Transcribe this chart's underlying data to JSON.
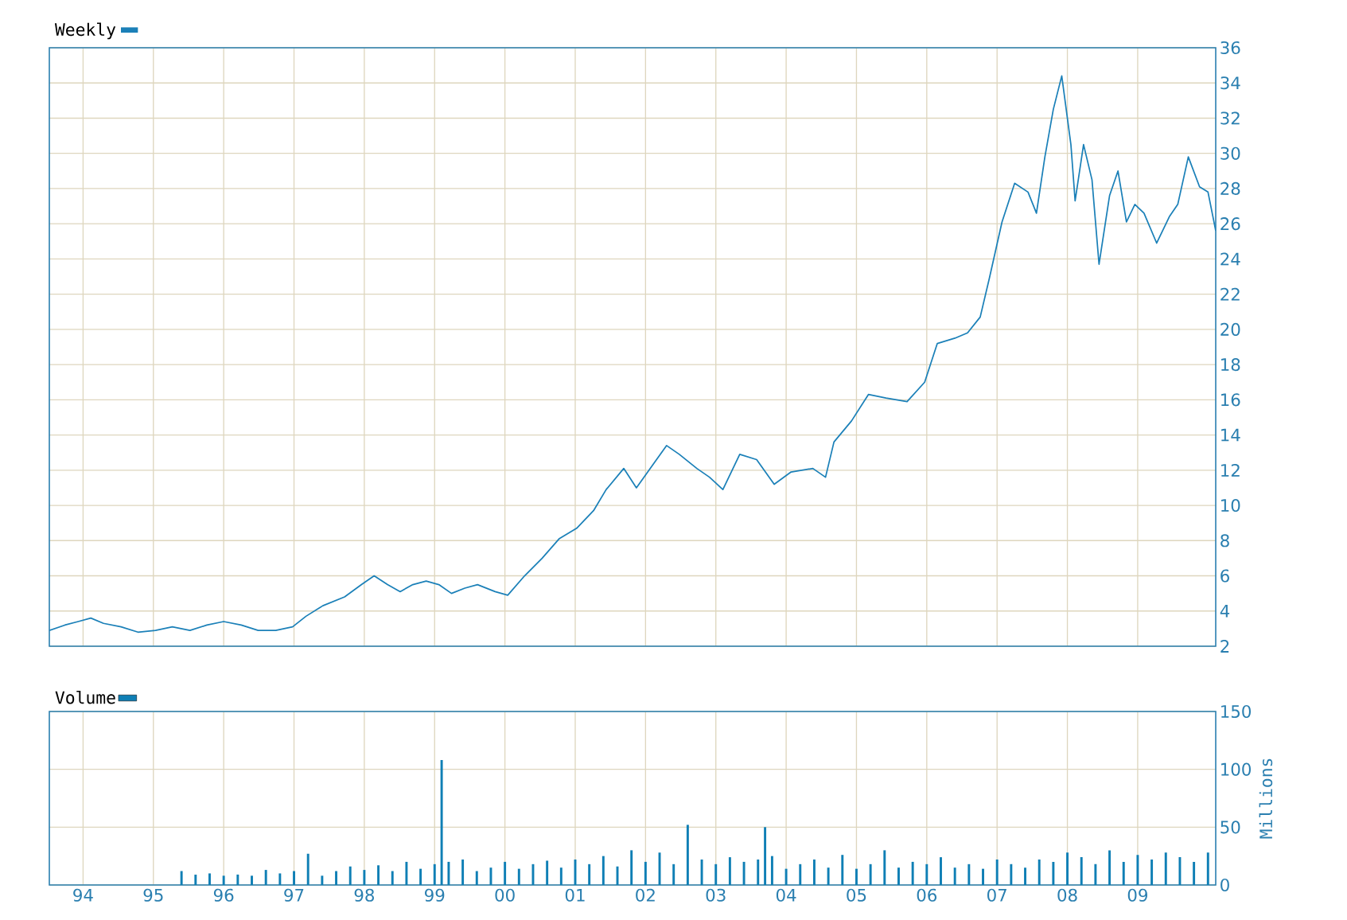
{
  "chart_data": [
    {
      "type": "line",
      "legend": "top left",
      "grid": true,
      "tick_labels": "y",
      "xlim": [
        1993.52,
        2010.11
      ],
      "ylim": [
        2,
        36
      ],
      "xticks": [
        {
          "value": 1994,
          "label": null
        },
        {
          "value": 1995,
          "label": null
        },
        {
          "value": 1996,
          "label": null
        },
        {
          "value": 1997,
          "label": null
        },
        {
          "value": 1998,
          "label": null
        },
        {
          "value": 1999,
          "label": null
        },
        {
          "value": 2000,
          "label": null
        },
        {
          "value": 2001,
          "label": null
        },
        {
          "value": 2002,
          "label": null
        },
        {
          "value": 2003,
          "label": null
        },
        {
          "value": 2004,
          "label": null
        },
        {
          "value": 2005,
          "label": null
        },
        {
          "value": 2006,
          "label": null
        },
        {
          "value": 2007,
          "label": null
        },
        {
          "value": 2008,
          "label": null
        },
        {
          "value": 2009,
          "label": null
        }
      ],
      "yticks": [
        2,
        4,
        6,
        8,
        10,
        12,
        14,
        16,
        18,
        20,
        22,
        24,
        26,
        28,
        30,
        32,
        34,
        36
      ],
      "x": [
        1993.52,
        1993.74,
        1993.93,
        1994.11,
        1994.29,
        1994.54,
        1994.78,
        1995.03,
        1995.27,
        1995.52,
        1995.76,
        1996.0,
        1996.25,
        1996.49,
        1996.74,
        1996.98,
        1997.17,
        1997.41,
        1997.72,
        1997.96,
        1998.14,
        1998.33,
        1998.51,
        1998.69,
        1998.88,
        1999.06,
        1999.24,
        1999.43,
        1999.61,
        1999.86,
        2000.04,
        2000.28,
        2000.53,
        2000.77,
        2001.02,
        2001.26,
        2001.44,
        2001.69,
        2001.87,
        2002.12,
        2002.3,
        2002.48,
        2002.73,
        2002.91,
        2003.1,
        2003.34,
        2003.58,
        2003.83,
        2004.07,
        2004.38,
        2004.56,
        2004.68,
        2004.93,
        2005.17,
        2005.42,
        2005.72,
        2005.97,
        2006.15,
        2006.4,
        2006.58,
        2006.76,
        2006.89,
        2007.07,
        2007.25,
        2007.44,
        2007.56,
        2007.68,
        2007.8,
        2007.92,
        2008.05,
        2008.11,
        2008.23,
        2008.35,
        2008.45,
        2008.6,
        2008.72,
        2008.84,
        2008.96,
        2009.09,
        2009.27,
        2009.45,
        2009.57,
        2009.72,
        2009.88,
        2010.0,
        2010.11
      ],
      "series": [
        {
          "name": "Weekly",
          "color": "#1b80b8",
          "values": [
            2.9,
            3.2,
            3.4,
            3.6,
            3.3,
            3.1,
            2.8,
            2.9,
            3.1,
            2.9,
            3.2,
            3.4,
            3.2,
            2.9,
            2.9,
            3.1,
            3.7,
            4.3,
            4.8,
            5.5,
            6.0,
            5.5,
            5.1,
            5.5,
            5.7,
            5.5,
            5.0,
            5.3,
            5.5,
            5.1,
            4.9,
            6.0,
            7.0,
            8.1,
            8.7,
            9.7,
            10.9,
            12.1,
            11.0,
            12.4,
            13.4,
            12.9,
            12.1,
            11.6,
            10.9,
            12.9,
            12.6,
            11.2,
            11.9,
            12.1,
            11.6,
            13.6,
            14.8,
            16.3,
            16.1,
            15.9,
            17.0,
            19.2,
            19.5,
            19.8,
            20.7,
            22.9,
            26.1,
            28.3,
            27.8,
            26.6,
            29.8,
            32.5,
            34.4,
            30.5,
            27.3,
            30.5,
            28.5,
            23.7,
            27.6,
            29.0,
            26.1,
            27.1,
            26.6,
            24.9,
            26.4,
            27.1,
            29.8,
            28.1,
            27.8,
            25.6
          ]
        }
      ]
    },
    {
      "type": "bar",
      "legend": "top left",
      "grid": true,
      "ylabel": "Millions",
      "xlim": [
        1993.52,
        2010.11
      ],
      "ylim": [
        0,
        150
      ],
      "xticks": [
        {
          "value": 1994,
          "label": "94"
        },
        {
          "value": 1995,
          "label": "95"
        },
        {
          "value": 1996,
          "label": "96"
        },
        {
          "value": 1997,
          "label": "97"
        },
        {
          "value": 1998,
          "label": "98"
        },
        {
          "value": 1999,
          "label": "99"
        },
        {
          "value": 2000,
          "label": "00"
        },
        {
          "value": 2001,
          "label": "01"
        },
        {
          "value": 2002,
          "label": "02"
        },
        {
          "value": 2003,
          "label": "03"
        },
        {
          "value": 2004,
          "label": "04"
        },
        {
          "value": 2005,
          "label": "05"
        },
        {
          "value": 2006,
          "label": "06"
        },
        {
          "value": 2007,
          "label": "07"
        },
        {
          "value": 2008,
          "label": "08"
        },
        {
          "value": 2009,
          "label": "09"
        }
      ],
      "yticks": [
        0,
        50,
        100,
        150
      ],
      "x": [
        1993.6,
        1993.8,
        1994.0,
        1994.2,
        1994.4,
        1994.6,
        1994.8,
        1995.0,
        1995.2,
        1995.4,
        1995.6,
        1995.8,
        1996.0,
        1996.2,
        1996.4,
        1996.6,
        1996.8,
        1997.0,
        1997.2,
        1997.4,
        1997.6,
        1997.8,
        1998.0,
        1998.2,
        1998.4,
        1998.6,
        1998.8,
        1999.0,
        1999.1,
        1999.2,
        1999.4,
        1999.6,
        1999.8,
        2000.0,
        2000.2,
        2000.4,
        2000.6,
        2000.8,
        2001.0,
        2001.2,
        2001.4,
        2001.6,
        2001.8,
        2002.0,
        2002.2,
        2002.4,
        2002.6,
        2002.8,
        2003.0,
        2003.2,
        2003.4,
        2003.6,
        2003.7,
        2003.8,
        2004.0,
        2004.2,
        2004.4,
        2004.6,
        2004.8,
        2005.0,
        2005.2,
        2005.4,
        2005.6,
        2005.8,
        2006.0,
        2006.2,
        2006.4,
        2006.6,
        2006.8,
        2007.0,
        2007.2,
        2007.4,
        2007.6,
        2007.8,
        2008.0,
        2008.2,
        2008.4,
        2008.6,
        2008.8,
        2009.0,
        2009.2,
        2009.4,
        2009.6,
        2009.8,
        2010.0
      ],
      "series": [
        {
          "name": "Volume",
          "color": "#0f7fb5",
          "values": [
            0,
            0,
            0,
            0,
            0,
            0,
            0,
            0,
            0,
            12,
            9,
            10,
            8,
            9,
            8,
            13,
            10,
            12,
            27,
            8,
            12,
            16,
            13,
            17,
            12,
            20,
            14,
            18,
            108,
            20,
            22,
            12,
            15,
            20,
            14,
            18,
            21,
            15,
            22,
            18,
            25,
            16,
            30,
            20,
            28,
            18,
            52,
            22,
            18,
            24,
            20,
            22,
            50,
            25,
            14,
            18,
            22,
            15,
            26,
            14,
            18,
            30,
            15,
            20,
            18,
            24,
            15,
            18,
            14,
            22,
            18,
            15,
            22,
            20,
            28,
            24,
            18,
            30,
            20,
            26,
            22,
            28,
            24,
            20,
            28
          ]
        }
      ]
    }
  ]
}
